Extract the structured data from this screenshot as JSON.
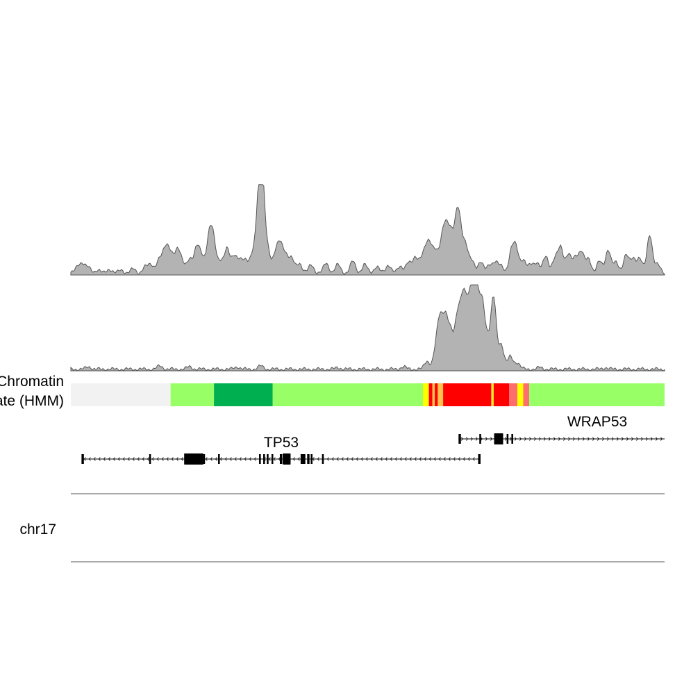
{
  "chromhmm_label": {
    "line1": "Chromatin",
    "line2": "State (HMM)"
  },
  "chromosome_label": "chr17",
  "genes": [
    {
      "name": "TP53",
      "strand": "-"
    },
    {
      "name": "WRAP53",
      "strand": "+"
    }
  ],
  "colors": {
    "signal_fill": "#b3b3b3",
    "signal_stroke": "#555555",
    "state_quiescent": "#f2f2f2",
    "state_weak_transcribed": "#99ff66",
    "state_strong_transcribed": "#00b050",
    "state_active_tss": "#ff0000",
    "state_flanking_tss": "#ff6e6e",
    "state_enhancer": "#ffff00",
    "state_genic_enhancer": "#ffc34d",
    "gene": "#000000",
    "axis_line": "#555555"
  },
  "chromatin_states": [
    {
      "state": "quiescent",
      "start": 0.0,
      "end": 0.168
    },
    {
      "state": "weak_transcribed",
      "start": 0.168,
      "end": 0.241
    },
    {
      "state": "strong_transcribed",
      "start": 0.241,
      "end": 0.34
    },
    {
      "state": "weak_transcribed",
      "start": 0.34,
      "end": 0.593
    },
    {
      "state": "enhancer",
      "start": 0.593,
      "end": 0.603
    },
    {
      "state": "active_tss",
      "start": 0.603,
      "end": 0.609
    },
    {
      "state": "genic_enhancer",
      "start": 0.609,
      "end": 0.613
    },
    {
      "state": "active_tss",
      "start": 0.613,
      "end": 0.618
    },
    {
      "state": "genic_enhancer",
      "start": 0.618,
      "end": 0.627
    },
    {
      "state": "active_tss",
      "start": 0.627,
      "end": 0.708
    },
    {
      "state": "genic_enhancer",
      "start": 0.708,
      "end": 0.71
    },
    {
      "state": "enhancer",
      "start": 0.71,
      "end": 0.712
    },
    {
      "state": "active_tss",
      "start": 0.712,
      "end": 0.738
    },
    {
      "state": "flanking_tss",
      "start": 0.738,
      "end": 0.752
    },
    {
      "state": "enhancer",
      "start": 0.752,
      "end": 0.762
    },
    {
      "state": "flanking_tss",
      "start": 0.762,
      "end": 0.772
    },
    {
      "state": "weak_transcribed",
      "start": 0.772,
      "end": 1.0
    }
  ],
  "signal_track_1": {
    "baseline_level": 0.02,
    "peaks": [
      [
        0.012,
        0.08
      ],
      [
        0.02,
        0.1
      ],
      [
        0.03,
        0.06
      ],
      [
        0.045,
        0.04
      ],
      [
        0.065,
        0.05
      ],
      [
        0.085,
        0.04
      ],
      [
        0.105,
        0.05
      ],
      [
        0.125,
        0.07
      ],
      [
        0.135,
        0.1
      ],
      [
        0.148,
        0.14
      ],
      [
        0.157,
        0.18
      ],
      [
        0.163,
        0.22
      ],
      [
        0.17,
        0.16
      ],
      [
        0.18,
        0.25
      ],
      [
        0.188,
        0.12
      ],
      [
        0.2,
        0.15
      ],
      [
        0.212,
        0.3
      ],
      [
        0.22,
        0.18
      ],
      [
        0.233,
        0.4
      ],
      [
        0.24,
        0.38
      ],
      [
        0.252,
        0.12
      ],
      [
        0.263,
        0.3
      ],
      [
        0.275,
        0.18
      ],
      [
        0.285,
        0.15
      ],
      [
        0.294,
        0.14
      ],
      [
        0.306,
        0.2
      ],
      [
        0.315,
        0.44
      ],
      [
        0.32,
        0.95
      ],
      [
        0.325,
        0.4
      ],
      [
        0.333,
        0.2
      ],
      [
        0.345,
        0.22
      ],
      [
        0.353,
        0.3
      ],
      [
        0.362,
        0.2
      ],
      [
        0.372,
        0.16
      ],
      [
        0.385,
        0.12
      ],
      [
        0.405,
        0.1
      ],
      [
        0.43,
        0.12
      ],
      [
        0.45,
        0.1
      ],
      [
        0.475,
        0.14
      ],
      [
        0.495,
        0.1
      ],
      [
        0.515,
        0.08
      ],
      [
        0.535,
        0.1
      ],
      [
        0.555,
        0.08
      ],
      [
        0.568,
        0.12
      ],
      [
        0.58,
        0.18
      ],
      [
        0.59,
        0.14
      ],
      [
        0.598,
        0.22
      ],
      [
        0.605,
        0.28
      ],
      [
        0.614,
        0.24
      ],
      [
        0.625,
        0.32
      ],
      [
        0.632,
        0.45
      ],
      [
        0.64,
        0.4
      ],
      [
        0.65,
        0.56
      ],
      [
        0.656,
        0.38
      ],
      [
        0.665,
        0.3
      ],
      [
        0.676,
        0.14
      ],
      [
        0.69,
        0.13
      ],
      [
        0.705,
        0.1
      ],
      [
        0.715,
        0.12
      ],
      [
        0.725,
        0.08
      ],
      [
        0.742,
        0.24
      ],
      [
        0.75,
        0.28
      ],
      [
        0.762,
        0.15
      ],
      [
        0.775,
        0.1
      ],
      [
        0.785,
        0.12
      ],
      [
        0.8,
        0.2
      ],
      [
        0.815,
        0.16
      ],
      [
        0.825,
        0.3
      ],
      [
        0.838,
        0.22
      ],
      [
        0.85,
        0.18
      ],
      [
        0.86,
        0.25
      ],
      [
        0.872,
        0.16
      ],
      [
        0.89,
        0.14
      ],
      [
        0.905,
        0.28
      ],
      [
        0.918,
        0.12
      ],
      [
        0.935,
        0.22
      ],
      [
        0.947,
        0.16
      ],
      [
        0.958,
        0.18
      ],
      [
        0.975,
        0.45
      ],
      [
        0.988,
        0.1
      ]
    ]
  },
  "signal_track_2": {
    "baseline_level": 0.02,
    "peaks": [
      [
        0.03,
        0.03
      ],
      [
        0.15,
        0.04
      ],
      [
        0.2,
        0.03
      ],
      [
        0.28,
        0.03
      ],
      [
        0.32,
        0.04
      ],
      [
        0.45,
        0.02
      ],
      [
        0.56,
        0.03
      ],
      [
        0.6,
        0.1
      ],
      [
        0.615,
        0.22
      ],
      [
        0.622,
        0.55
      ],
      [
        0.631,
        0.58
      ],
      [
        0.64,
        0.4
      ],
      [
        0.651,
        0.62
      ],
      [
        0.66,
        0.75
      ],
      [
        0.668,
        0.62
      ],
      [
        0.677,
        0.98
      ],
      [
        0.684,
        0.72
      ],
      [
        0.693,
        0.74
      ],
      [
        0.702,
        0.3
      ],
      [
        0.712,
        0.86
      ],
      [
        0.725,
        0.3
      ],
      [
        0.74,
        0.15
      ],
      [
        0.752,
        0.08
      ],
      [
        0.79,
        0.02
      ],
      [
        0.9,
        0.02
      ]
    ]
  },
  "gene_models": {
    "TP53": {
      "start": 0.018,
      "end": 0.69,
      "exons": [
        [
          0.018,
          0.022
        ],
        [
          0.132,
          0.134
        ],
        [
          0.191,
          0.223
        ],
        [
          0.223,
          0.226
        ],
        [
          0.248,
          0.25
        ],
        [
          0.317,
          0.32
        ],
        [
          0.324,
          0.327
        ],
        [
          0.33,
          0.333
        ],
        [
          0.338,
          0.34
        ],
        [
          0.352,
          0.356
        ],
        [
          0.357,
          0.363
        ],
        [
          0.363,
          0.37
        ],
        [
          0.387,
          0.395
        ],
        [
          0.398,
          0.402
        ],
        [
          0.404,
          0.407
        ],
        [
          0.423,
          0.426
        ],
        [
          0.686,
          0.69
        ]
      ],
      "thick_exons": [
        [
          0.191,
          0.223
        ],
        [
          0.357,
          0.37
        ]
      ]
    },
    "WRAP53": {
      "start": 0.653,
      "end": 1.0,
      "exons": [
        [
          0.653,
          0.657
        ],
        [
          0.688,
          0.691
        ],
        [
          0.713,
          0.718
        ],
        [
          0.718,
          0.728
        ],
        [
          0.734,
          0.737
        ],
        [
          0.742,
          0.745
        ]
      ],
      "thick_exons": [
        [
          0.713,
          0.728
        ]
      ]
    }
  }
}
